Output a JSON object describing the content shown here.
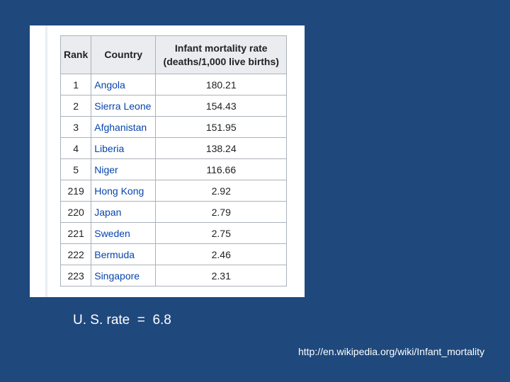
{
  "table": {
    "headers": {
      "rank": "Rank",
      "country": "Country",
      "rate_line1": "Infant mortality rate",
      "rate_line2": "(deaths/1,000 live births)"
    },
    "rows": [
      {
        "rank": "1",
        "country": "Angola",
        "rate": "180.21"
      },
      {
        "rank": "2",
        "country": "Sierra Leone",
        "rate": "154.43"
      },
      {
        "rank": "3",
        "country": "Afghanistan",
        "rate": "151.95"
      },
      {
        "rank": "4",
        "country": "Liberia",
        "rate": "138.24"
      },
      {
        "rank": "5",
        "country": "Niger",
        "rate": "116.66"
      },
      {
        "rank": "219",
        "country": "Hong Kong",
        "rate": "2.92"
      },
      {
        "rank": "220",
        "country": "Japan",
        "rate": "2.79"
      },
      {
        "rank": "221",
        "country": "Sweden",
        "rate": "2.75"
      },
      {
        "rank": "222",
        "country": "Bermuda",
        "rate": "2.46"
      },
      {
        "rank": "223",
        "country": "Singapore",
        "rate": "2.31"
      }
    ]
  },
  "note": "U. S. rate  =  6.8",
  "source_url": "http://en.wikipedia.org/wiki/Infant_mortality",
  "colors": {
    "background": "#1f497d",
    "link": "#0645ad",
    "header_bg": "#eaecf0"
  }
}
